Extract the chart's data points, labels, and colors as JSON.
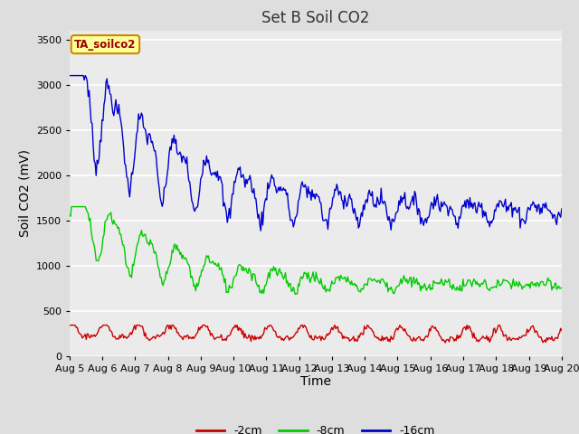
{
  "title": "Set B Soil CO2",
  "xlabel": "Time",
  "ylabel": "Soil CO2 (mV)",
  "ylim": [
    0,
    3600
  ],
  "yticks": [
    0,
    500,
    1000,
    1500,
    2000,
    2500,
    3000,
    3500
  ],
  "n_points": 500,
  "days": 15,
  "blue_color": "#0000CC",
  "green_color": "#00CC00",
  "red_color": "#CC0000",
  "legend_labels": [
    "-2cm",
    "-8cm",
    "-16cm"
  ],
  "box_label": "TA_soilco2",
  "box_facecolor": "#FFFF99",
  "box_edgecolor": "#CC8800",
  "box_textcolor": "#990000",
  "bg_color": "#DEDEDE",
  "plot_bg_color": "#EBEBEB",
  "title_fontsize": 12,
  "axis_label_fontsize": 10,
  "tick_label_fontsize": 8,
  "xticklabels": [
    "Aug 5",
    "Aug 6",
    "Aug 7",
    "Aug 8",
    "Aug 9",
    "Aug 10",
    "Aug 11",
    "Aug 12",
    "Aug 13",
    "Aug 14",
    "Aug 15",
    "Aug 16",
    "Aug 17",
    "Aug 18",
    "Aug 19",
    "Aug 20"
  ],
  "grid_color": "#FFFFFF",
  "line_width": 1.0
}
